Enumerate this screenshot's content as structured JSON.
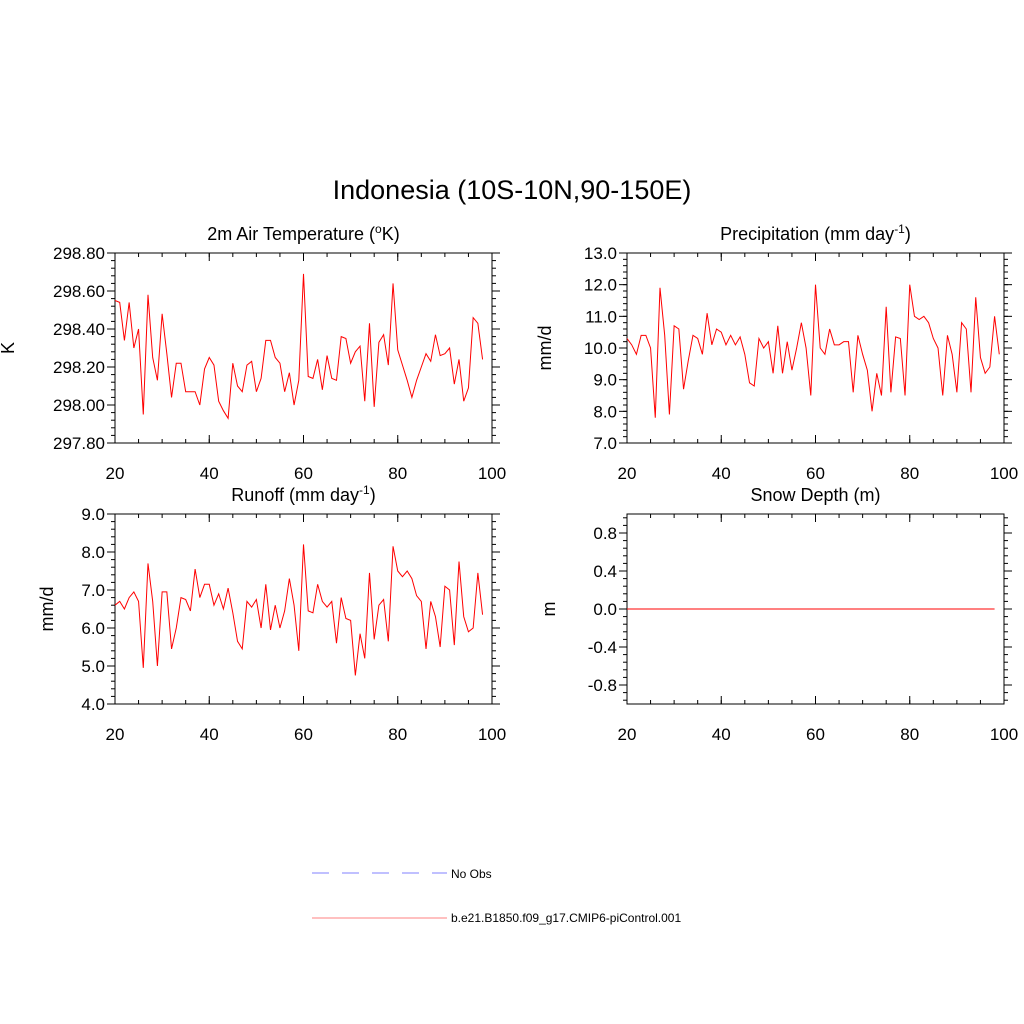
{
  "figure_title": "Indonesia (10S-10N,90-150E)",
  "colors": {
    "model": "#ff0000",
    "obs": "#9a9aff",
    "axis": "#000000"
  },
  "legend": [
    {
      "label": "No Obs",
      "style": "dashed",
      "color": "#9a9aff"
    },
    {
      "label": "b.e21.B1850.f09_g17.CMIP6-piControl.001",
      "style": "solid",
      "color": "#ff0000"
    }
  ],
  "chart_data": [
    {
      "id": "temperature",
      "type": "line",
      "title": "2m Air Temperature (",
      "title_sup": "o",
      "title_after": "K)",
      "xlabel": "",
      "ylabel": "K",
      "xlim": [
        20,
        100
      ],
      "ylim": [
        297.8,
        298.8
      ],
      "xticks": [
        20,
        40,
        60,
        80,
        100
      ],
      "yticks": [
        297.8,
        298.0,
        298.2,
        298.4,
        298.6,
        298.8
      ],
      "ytick_labels": [
        "297.80",
        "298.00",
        "298.20",
        "298.40",
        "298.60",
        "298.80"
      ],
      "series": [
        {
          "name": "b.e21.B1850.f09_g17.CMIP6-piControl.001",
          "x_start": 20,
          "values": [
            298.55,
            298.54,
            298.34,
            298.54,
            298.3,
            298.4,
            297.95,
            298.58,
            298.25,
            298.13,
            298.48,
            298.27,
            298.04,
            298.22,
            298.22,
            298.07,
            298.07,
            298.07,
            298.0,
            298.19,
            298.25,
            298.21,
            298.02,
            297.97,
            297.93,
            298.22,
            298.1,
            298.07,
            298.21,
            298.23,
            298.07,
            298.14,
            298.34,
            298.34,
            298.25,
            298.22,
            298.07,
            298.17,
            298.0,
            298.13,
            298.69,
            298.15,
            298.14,
            298.24,
            298.08,
            298.26,
            298.14,
            298.13,
            298.36,
            298.35,
            298.22,
            298.28,
            298.31,
            298.02,
            298.43,
            297.99,
            298.33,
            298.37,
            298.21,
            298.64,
            298.29,
            298.21,
            298.13,
            298.04,
            298.13,
            298.2,
            298.27,
            298.23,
            298.37,
            298.26,
            298.27,
            298.3,
            298.11,
            298.24,
            298.02,
            298.09,
            298.46,
            298.43,
            298.24
          ]
        }
      ]
    },
    {
      "id": "precipitation",
      "type": "line",
      "title": "Precipitation (mm day",
      "title_sup": "-1",
      "title_after": ")",
      "xlabel": "",
      "ylabel": "mm/d",
      "xlim": [
        20,
        100
      ],
      "ylim": [
        7.0,
        13.0
      ],
      "xticks": [
        20,
        40,
        60,
        80,
        100
      ],
      "yticks": [
        7,
        8,
        9,
        10,
        11,
        12,
        13
      ],
      "ytick_labels": [
        "7.0",
        "8.0",
        "9.0",
        "10.0",
        "11.0",
        "12.0",
        "13.0"
      ],
      "series": [
        {
          "name": "b.e21.B1850.f09_g17.CMIP6-piControl.001",
          "x_start": 20,
          "values": [
            10.3,
            10.1,
            9.8,
            10.4,
            10.4,
            10.0,
            7.8,
            11.9,
            10.4,
            7.9,
            10.7,
            10.6,
            8.7,
            9.6,
            10.4,
            10.3,
            9.8,
            11.1,
            10.1,
            10.6,
            10.5,
            10.1,
            10.4,
            10.1,
            10.35,
            9.8,
            8.9,
            8.8,
            10.3,
            10.0,
            10.2,
            9.2,
            10.7,
            9.2,
            10.2,
            9.3,
            10.0,
            10.8,
            10.0,
            8.5,
            12.0,
            10.0,
            9.8,
            10.6,
            10.1,
            10.1,
            10.2,
            10.2,
            8.6,
            10.4,
            9.8,
            9.3,
            8.0,
            9.2,
            8.5,
            11.3,
            8.6,
            10.35,
            10.3,
            8.5,
            12.0,
            11.0,
            10.9,
            11.0,
            10.8,
            10.3,
            10.0,
            8.5,
            10.4,
            9.8,
            8.6,
            10.8,
            10.6,
            8.6,
            11.6,
            9.7,
            9.2,
            9.4,
            11.0,
            9.8
          ]
        }
      ]
    },
    {
      "id": "runoff",
      "type": "line",
      "title": "Runoff (mm day",
      "title_sup": "-1",
      "title_after": ")",
      "xlabel": "",
      "ylabel": "mm/d",
      "xlim": [
        20,
        100
      ],
      "ylim": [
        4.0,
        9.0
      ],
      "xticks": [
        20,
        40,
        60,
        80,
        100
      ],
      "yticks": [
        4,
        5,
        6,
        7,
        8,
        9
      ],
      "ytick_labels": [
        "4.0",
        "5.0",
        "6.0",
        "7.0",
        "8.0",
        "9.0"
      ],
      "series": [
        {
          "name": "b.e21.B1850.f09_g17.CMIP6-piControl.001",
          "x_start": 20,
          "values": [
            6.6,
            6.7,
            6.5,
            6.8,
            6.95,
            6.7,
            4.95,
            7.7,
            6.7,
            5.0,
            6.95,
            6.95,
            5.45,
            6.0,
            6.8,
            6.75,
            6.45,
            7.55,
            6.8,
            7.15,
            7.15,
            6.6,
            6.9,
            6.5,
            7.05,
            6.4,
            5.65,
            5.45,
            6.7,
            6.55,
            6.75,
            6.0,
            7.15,
            5.95,
            6.6,
            6.0,
            6.45,
            7.3,
            6.6,
            5.4,
            8.2,
            6.45,
            6.4,
            7.15,
            6.7,
            6.55,
            6.7,
            5.6,
            6.8,
            6.25,
            6.2,
            4.75,
            5.85,
            5.2,
            7.45,
            5.7,
            6.6,
            6.75,
            5.65,
            8.15,
            7.5,
            7.35,
            7.5,
            7.3,
            6.85,
            6.7,
            5.45,
            6.7,
            6.3,
            5.5,
            7.1,
            7.0,
            5.55,
            7.75,
            6.3,
            5.9,
            6.0,
            7.45,
            6.35
          ]
        }
      ]
    },
    {
      "id": "snow-depth",
      "type": "line",
      "title": "Snow Depth (m)",
      "title_sup": "",
      "title_after": "",
      "xlabel": "",
      "ylabel": "m",
      "xlim": [
        20,
        100
      ],
      "ylim": [
        -1.0,
        1.0
      ],
      "xticks": [
        20,
        40,
        60,
        80,
        100
      ],
      "yticks": [
        -0.8,
        -0.4,
        0.0,
        0.4,
        0.8
      ],
      "ytick_labels": [
        "-0.8",
        "-0.4",
        "0.0",
        "0.4",
        "0.8"
      ],
      "series": [
        {
          "name": "b.e21.B1850.f09_g17.CMIP6-piControl.001",
          "x": [
            20,
            98
          ],
          "values": [
            0.0,
            0.0
          ]
        }
      ]
    }
  ]
}
